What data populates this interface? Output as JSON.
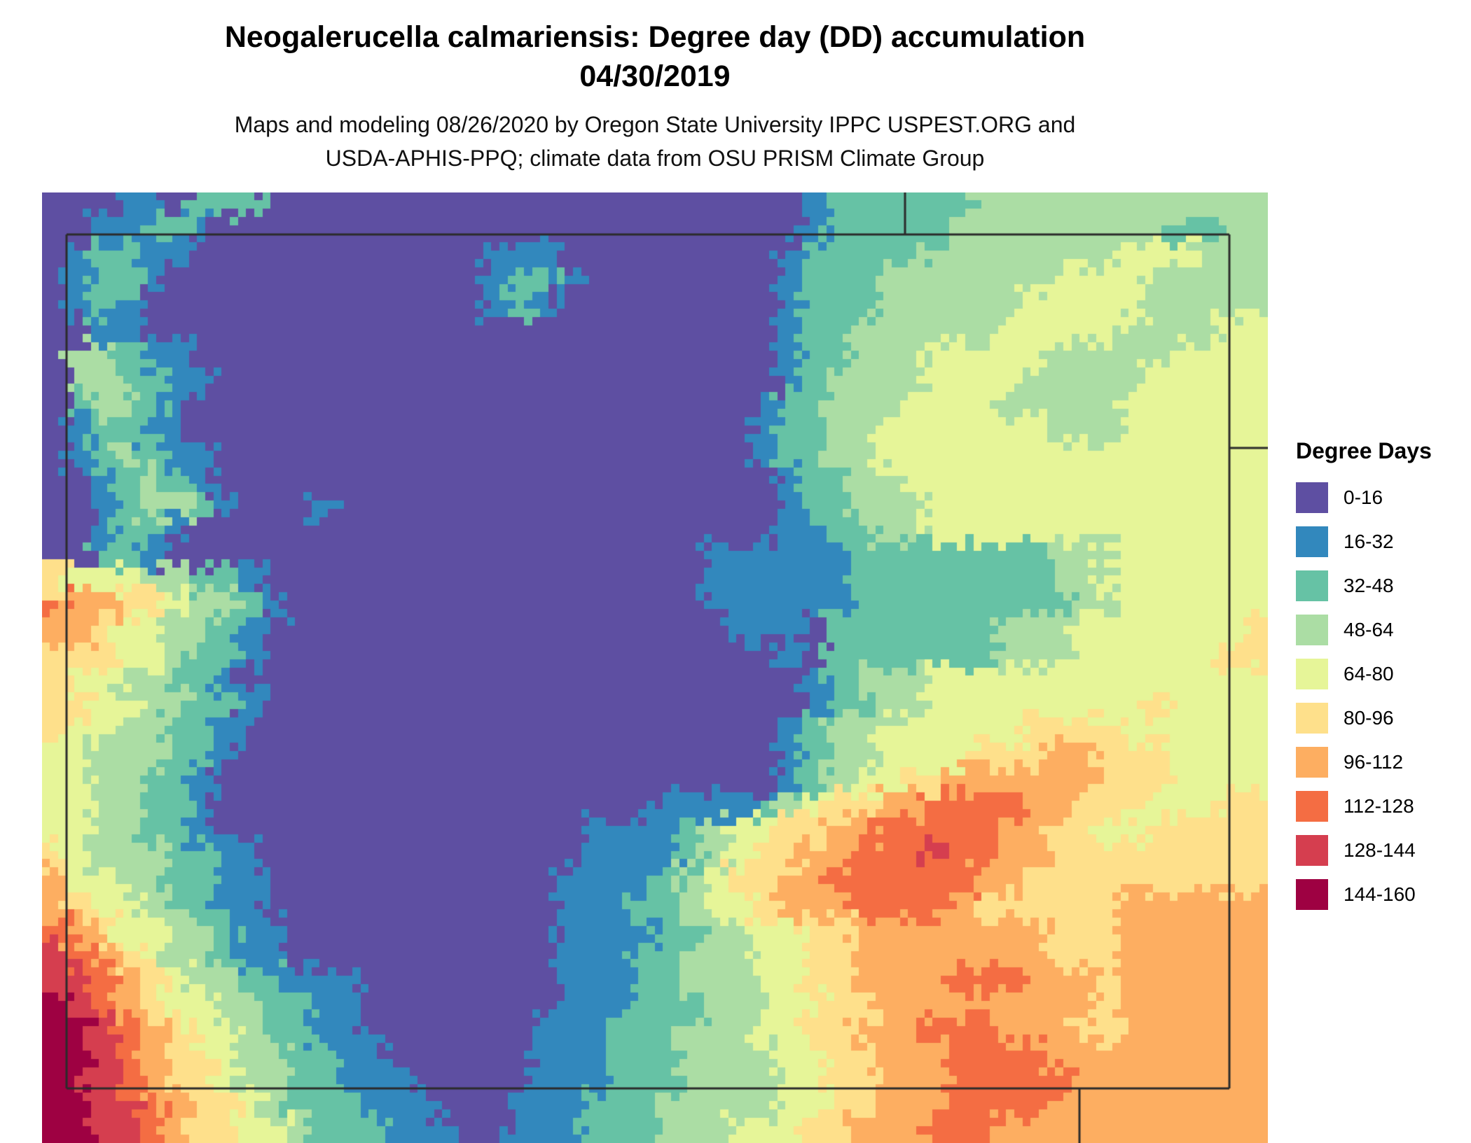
{
  "title": {
    "line1": "Neogalerucella calmariensis: Degree day (DD) accumulation",
    "line2": "04/30/2019"
  },
  "subtitle": {
    "line1": "Maps and modeling 08/26/2020 by Oregon State University IPPC USPEST.ORG and",
    "line2": "USDA-APHIS-PPQ; climate data from OSU PRISM Climate Group"
  },
  "legend": {
    "title": "Degree Days",
    "entries": [
      {
        "label": "0-16"
      },
      {
        "label": "16-32"
      },
      {
        "label": "32-48"
      },
      {
        "label": "48-64"
      },
      {
        "label": "64-80"
      },
      {
        "label": "80-96"
      },
      {
        "label": "96-112"
      },
      {
        "label": "112-128"
      },
      {
        "label": "128-144"
      },
      {
        "label": "144-160"
      }
    ]
  },
  "map": {
    "border_color": "#2b2b2b",
    "palette": [
      "#5e4fa2",
      "#3288bd",
      "#66c2a5",
      "#abdda4",
      "#e6f598",
      "#fee08b",
      "#fdae61",
      "#f46d43",
      "#d53e4f",
      "#9e0142"
    ],
    "border_lines": [
      [
        0.02,
        0.0442,
        0.9686,
        0.0442
      ],
      [
        0.9686,
        0.0442,
        0.9686,
        0.9426
      ],
      [
        0.9686,
        0.9426,
        0.02,
        0.9426
      ],
      [
        0.02,
        0.9426,
        0.02,
        0.0442
      ],
      [
        0.704,
        0.0,
        0.704,
        0.0442
      ],
      [
        0.9686,
        0.2688,
        1.0,
        0.2688
      ],
      [
        0.8463,
        0.9426,
        0.8463,
        1.0
      ]
    ],
    "grid": {
      "cols": 50,
      "rows": 38,
      "cells": [
        "00011022200000000000000000000001222222333333333333",
        "00112210000000000000000000000001222223333333332233",
        "01221100000000000011100000000012222233333333444333",
        "01221000000000000012210000000012223333333444433333",
        "01210000000000000012100000000012223333334444433333",
        "00110000000000000000000000000012233333344444333344",
        "03321100000000000000000000000012233344444333334444",
        "03322110000000000000000000000012333344443333344444",
        "02332100000000000000000000000122333444433333444444",
        "01221100000000000000000000000122334444444333444444",
        "01232110000000000000000000000122334444444444444444",
        "00123210000000000000000000000012233444444444444444",
        "00123321000100000000000000000012233344444444444444",
        "00122100000000000000000000000011223344444444444444",
        "00221000000000000000000000011111122222222333444444",
        "54443322100000000000000000011111122222222334444444",
        "76655433210000000000000000011111122222222233444444",
        "66544332100000000000000000001110222222233344444445",
        "55544322100000000000000000000010222222233344444455",
        "54433221000000000000000000000001233344444444444444",
        "55443322100000000000000000000001223344444444454444",
        "54433221000000000000000000000012334444445555444444",
        "44333221000000000000000000000012334444555665554444",
        "44332210000000000000000000000012344556666665554444",
        "44332210000000000000000001111234556677776655544 45",
        "44332210000000000000001111234455667777766554 45",
        "54333221100000000000001111234556677787766555 55",
        "64433221100000000000011112345566777777665555 55",
        "65443221100000000000011122344566677776555555 66",
        "76544332110000000000011112233445566666666555 66",
        "87654332110000000000011122333445566666666555 66",
        "88765433221110000000011122333445566667776665 66",
        "98765443322110000000011122233344556666666665 66",
        "99876544322110000000111222333445566677766655 66",
        "99876554332211000000111222333344556667777666 66",
        "98876554332211100000111222333344556667777766 66",
        "99887655432221110001112223333344556667777666 66",
        "99887655443222111001112223334445566677766666 66"
      ]
    }
  }
}
